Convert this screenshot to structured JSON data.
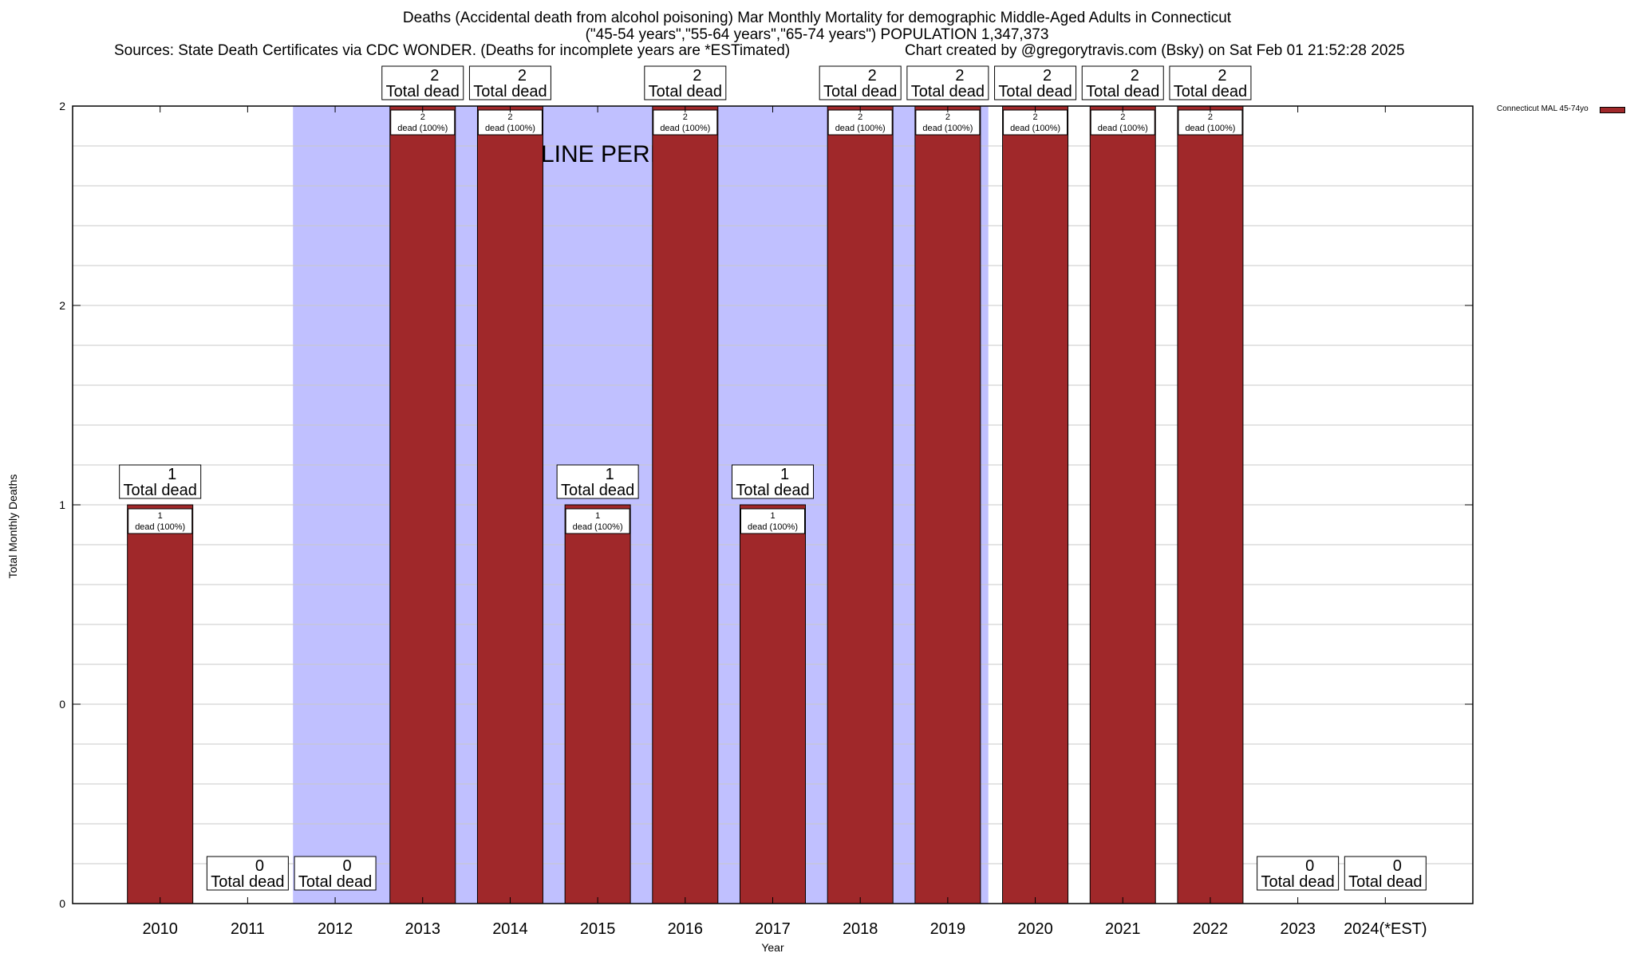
{
  "chart_data": {
    "type": "bar",
    "title": "Deaths (Accidental death from alcohol poisoning) Mar Monthly Mortality for demographic Middle-Aged Adults in Connecticut",
    "subtitle": "(\"45-54 years\",\"55-64 years\",\"65-74 years\") POPULATION 1,347,373",
    "sources": "Sources: State Death Certificates via CDC WONDER. (Deaths for incomplete years are *ESTimated)",
    "credit": "Chart created by @gregorytravis.com (Bsky) on Sat Feb 01 21:52:28 2025",
    "xlabel": "Year",
    "ylabel": "Total Monthly Deaths",
    "categories": [
      "2010",
      "2011",
      "2012",
      "2013",
      "2014",
      "2015",
      "2016",
      "2017",
      "2018",
      "2019",
      "2020",
      "2021",
      "2022",
      "2023",
      "2024(*EST)"
    ],
    "series": [
      {
        "name": "Connecticut MAL 45-74yo",
        "values": [
          1,
          0,
          0,
          2,
          2,
          1,
          2,
          1,
          2,
          2,
          2,
          2,
          2,
          0,
          0
        ],
        "color": "#a0282a"
      }
    ],
    "ylim": [
      0,
      2
    ],
    "yticks": [
      {
        "value": 0,
        "label": "0"
      },
      {
        "value": 0.5,
        "label": "0"
      },
      {
        "value": 1,
        "label": "1"
      },
      {
        "value": 1.5,
        "label": "2"
      },
      {
        "value": 2,
        "label": "2"
      }
    ],
    "total_labels": [
      {
        "value": "1",
        "text": "Total dead"
      },
      {
        "value": "0",
        "text": "Total dead"
      },
      {
        "value": "0",
        "text": "Total dead"
      },
      {
        "value": "2",
        "text": "Total dead"
      },
      {
        "value": "2",
        "text": "Total dead"
      },
      {
        "value": "1",
        "text": "Total dead"
      },
      {
        "value": "2",
        "text": "Total dead"
      },
      {
        "value": "1",
        "text": "Total dead"
      },
      {
        "value": "2",
        "text": "Total dead"
      },
      {
        "value": "2",
        "text": "Total dead"
      },
      {
        "value": "2",
        "text": "Total dead"
      },
      {
        "value": "2",
        "text": "Total dead"
      },
      {
        "value": "2",
        "text": "Total dead"
      },
      {
        "value": "0",
        "text": "Total dead"
      },
      {
        "value": "0",
        "text": "Total dead"
      }
    ],
    "inner_labels": [
      "1",
      "",
      "",
      "2",
      "2",
      "1",
      "2",
      "1",
      "2",
      "2",
      "2",
      "2",
      "2",
      "",
      ""
    ],
    "inner_label_suffix": "dead (100%)",
    "baseline_period": {
      "label": "BASELINE PERIOD",
      "start": "2012",
      "end": "2019",
      "color": "#c0c0ff"
    },
    "grid": true,
    "legend_position": "top-right"
  }
}
